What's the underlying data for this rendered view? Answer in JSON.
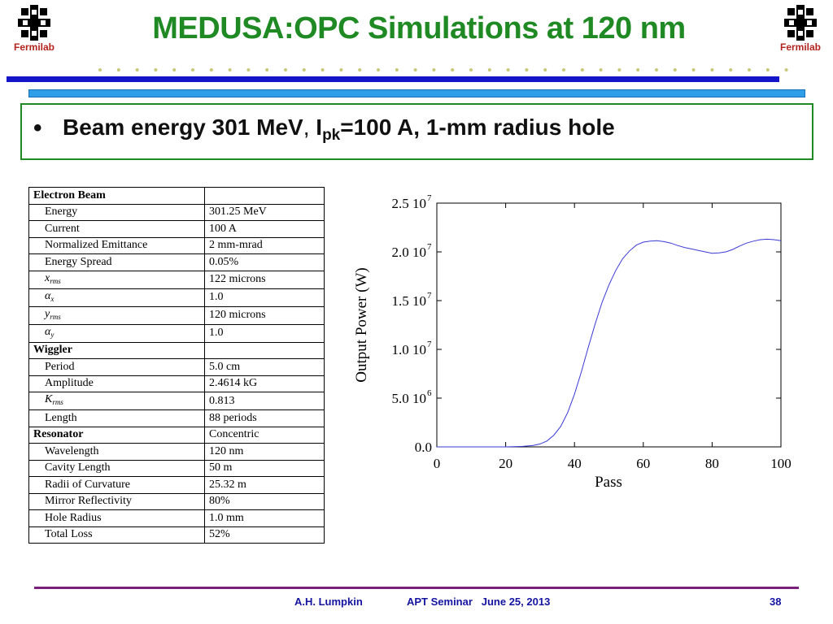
{
  "logo": {
    "text": "Fermilab",
    "icon": "fermilab-logo-icon",
    "color": "#b4231e"
  },
  "title": "MEDUSA:OPC Simulations at 120 nm",
  "bullet": {
    "mark": "•",
    "part1": "Beam energy 301 MeV",
    "comma": ",",
    "i_symbol": "I",
    "i_sub": "pk",
    "part2": "=100 A, 1-mm radius hole"
  },
  "table": {
    "rows": [
      {
        "label": "Electron Beam",
        "value": "",
        "section": true
      },
      {
        "label": "Energy",
        "value": "301.25 MeV"
      },
      {
        "label": "Current",
        "value": "100 A"
      },
      {
        "label": "Normalized Emittance",
        "value": "2 mm-mrad"
      },
      {
        "label": "Energy Spread",
        "value": "0.05%"
      },
      {
        "sym": "x",
        "sub": "rms",
        "value": "122 microns"
      },
      {
        "sym": "α",
        "sub": "x",
        "value": "1.0"
      },
      {
        "sym": "y",
        "sub": "rms",
        "value": "120 microns"
      },
      {
        "sym": "α",
        "sub": "y",
        "value": "1.0"
      },
      {
        "label": "Wiggler",
        "value": "",
        "section": true
      },
      {
        "label": "Period",
        "value": "5.0 cm"
      },
      {
        "label": "Amplitude",
        "value": "2.4614 kG"
      },
      {
        "sym": "K",
        "sub": "rms",
        "value": "0.813"
      },
      {
        "label": "Length",
        "value": "88 periods"
      },
      {
        "label": "Resonator",
        "value": "Concentric",
        "section": true
      },
      {
        "label": "Wavelength",
        "value": "120 nm"
      },
      {
        "label": "Cavity Length",
        "value": "50 m"
      },
      {
        "label": "Radii of Curvature",
        "value": "25.32 m"
      },
      {
        "label": "Mirror Reflectivity",
        "value": "80%"
      },
      {
        "label": "Hole Radius",
        "value": "1.0 mm"
      },
      {
        "label": "Total Loss",
        "value": "52%"
      }
    ]
  },
  "chart_data": {
    "type": "line",
    "xlabel": "Pass",
    "ylabel": "Output Power (W)",
    "xlim": [
      0,
      100
    ],
    "ylim": [
      0,
      25000000
    ],
    "x_ticks": [
      "0",
      "20",
      "40",
      "60",
      "80",
      "100"
    ],
    "y_ticks": [
      {
        "value": 0,
        "mant": "0.0",
        "exp": ""
      },
      {
        "value": 5000000,
        "mant": "5.0 10",
        "exp": "6"
      },
      {
        "value": 10000000,
        "mant": "1.0 10",
        "exp": "7"
      },
      {
        "value": 15000000,
        "mant": "1.5 10",
        "exp": "7"
      },
      {
        "value": 20000000,
        "mant": "2.0 10",
        "exp": "7"
      },
      {
        "value": 25000000,
        "mant": "2.5 10",
        "exp": "7"
      }
    ],
    "line_color": "#3a3ad6",
    "series": [
      {
        "x": [
          0,
          10,
          20,
          25,
          28,
          30,
          32,
          34,
          36,
          38,
          40,
          42,
          44,
          46,
          48,
          50,
          52,
          54,
          56,
          58,
          60,
          62,
          64,
          66,
          68,
          70,
          72,
          74,
          76,
          78,
          80,
          82,
          84,
          86,
          88,
          90,
          92,
          94,
          96,
          98,
          100
        ],
        "y": [
          0,
          0,
          0,
          50000,
          150000,
          300000,
          600000,
          1200000,
          2100000,
          3500000,
          5400000,
          7700000,
          10200000,
          12600000,
          14800000,
          16600000,
          18100000,
          19300000,
          20100000,
          20700000,
          21000000,
          21100000,
          21150000,
          21050000,
          20900000,
          20650000,
          20450000,
          20300000,
          20150000,
          20000000,
          19850000,
          19900000,
          20000000,
          20250000,
          20600000,
          20900000,
          21100000,
          21250000,
          21300000,
          21250000,
          21150000
        ]
      }
    ]
  },
  "footer": {
    "author": "A.H. Lumpkin",
    "seminar": "APT Seminar   June 25, 2013",
    "page": "38",
    "line_color": "#7a1f7a"
  }
}
